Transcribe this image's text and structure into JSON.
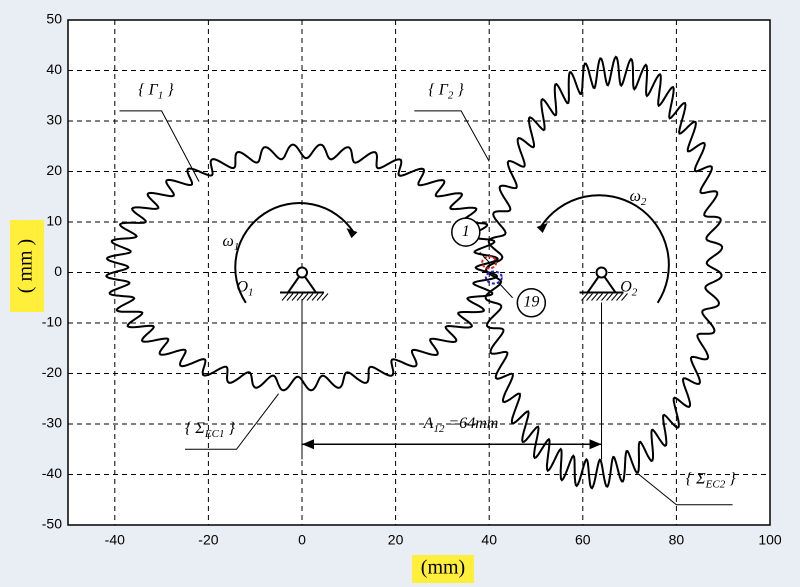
{
  "axes": {
    "xlim": [
      -50,
      100
    ],
    "ylim": [
      -50,
      50
    ],
    "xticks": [
      -40,
      -20,
      0,
      20,
      40,
      60,
      80,
      100
    ],
    "yticks": [
      50,
      40,
      30,
      20,
      10,
      0,
      -10,
      -20,
      -30,
      -40,
      -50
    ],
    "xlabel": "(mm)",
    "ylabel": "( mm )"
  },
  "annotations": [
    {
      "text": "{ Γ",
      "sub": "1",
      "suffix": " }"
    },
    {
      "text": "{ Γ",
      "sub": "2",
      "suffix": " }"
    },
    {
      "text": "ω",
      "sub": "1",
      "suffix": ""
    },
    {
      "text": "ω",
      "sub": "2",
      "suffix": ""
    },
    {
      "text": "O",
      "sub": "1",
      "suffix": ""
    },
    {
      "text": "O",
      "sub": "2",
      "suffix": ""
    },
    {
      "text": "{ Σ",
      "sub": "EC1",
      "suffix": " }"
    },
    {
      "text": "{ Σ",
      "sub": "EC2",
      "suffix": " }"
    },
    {
      "text": "A",
      "sub": "12",
      "suffix": " =64mm"
    }
  ],
  "markers": [
    "1",
    "19"
  ]
}
